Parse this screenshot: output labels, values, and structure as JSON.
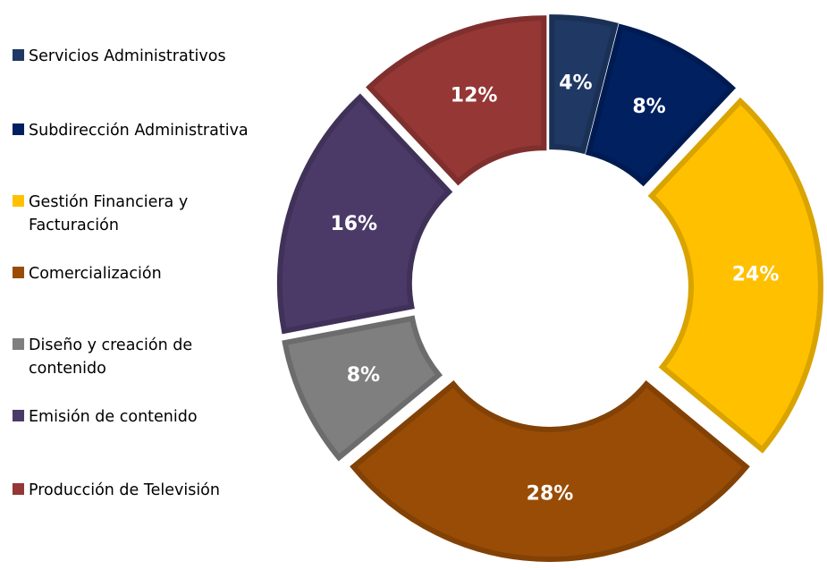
{
  "chart_data": {
    "type": "donut",
    "categories": [
      "Servicios Administrativos",
      "Subdirección Administrativa",
      "Gestión Financiera y Facturación",
      "Comercialización",
      "Diseño y creación de contenido",
      "Emisión de contenido",
      "Producción de Televisión"
    ],
    "values": [
      4,
      8,
      24,
      28,
      8,
      16,
      12
    ],
    "value_labels": [
      "4%",
      "8%",
      "24%",
      "28%",
      "8%",
      "16%",
      "12%"
    ],
    "colors": [
      "#1f3864",
      "#002060",
      "#ffc000",
      "#994c06",
      "#7f7f7f",
      "#4b3a68",
      "#953735"
    ],
    "legend": "left"
  }
}
